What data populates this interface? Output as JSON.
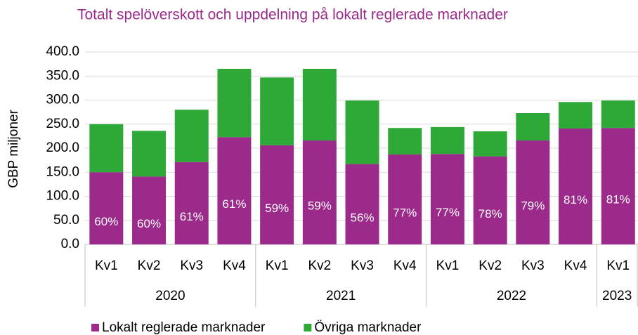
{
  "chart_data": {
    "type": "stacked_bar",
    "title": "Totalt spelöverskott och uppdelning på lokalt reglerade marknader",
    "y_label": "GBP miljoner",
    "categories": [
      "Kv1",
      "Kv2",
      "Kv3",
      "Kv4",
      "Kv1",
      "Kv2",
      "Kv3",
      "Kv4",
      "Kv1",
      "Kv2",
      "Kv3",
      "Kv4",
      "Kv1"
    ],
    "years": [
      "2020",
      "2020",
      "2020",
      "2020",
      "2021",
      "2021",
      "2021",
      "2021",
      "2022",
      "2022",
      "2022",
      "2022",
      "2023"
    ],
    "series": [
      {
        "name": "Lokalt reglerade marknader",
        "color": "#9b2a8b",
        "values": [
          150,
          141,
          171,
          223,
          206,
          216,
          167,
          187,
          188,
          183,
          216,
          241,
          242
        ],
        "share_labels": [
          "60%",
          "60%",
          "61%",
          "61%",
          "59%",
          "59%",
          "56%",
          "77%",
          "77%",
          "78%",
          "79%",
          "81%",
          "81%"
        ]
      },
      {
        "name": "Övriga marknader",
        "color": "#2ea836",
        "values": [
          100,
          95,
          109,
          142,
          141,
          149,
          132,
          55,
          56,
          52,
          57,
          55,
          57
        ]
      }
    ],
    "ylim": [
      0,
      400
    ],
    "yticks": [
      {
        "value": 0,
        "label": "0.0"
      },
      {
        "value": 50,
        "label": "50.0"
      },
      {
        "value": 100,
        "label": "100.0"
      },
      {
        "value": 150,
        "label": "150.0"
      },
      {
        "value": 200,
        "label": "200.0"
      },
      {
        "value": 250,
        "label": "250.0"
      },
      {
        "value": 300,
        "label": "300.0"
      },
      {
        "value": 350,
        "label": "350.0"
      },
      {
        "value": 400,
        "label": "400.0"
      }
    ],
    "grid": true
  }
}
